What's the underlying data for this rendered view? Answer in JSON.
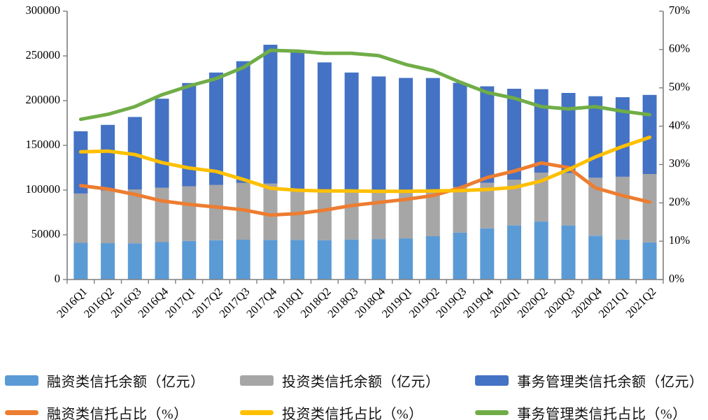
{
  "chart_data": {
    "type": "combo-stacked-bar-line",
    "title": "",
    "grid": false,
    "bars_stacked": true,
    "legend_position": "bottom",
    "categories": [
      "2016Q1",
      "2016Q2",
      "2016Q3",
      "2016Q4",
      "2017Q1",
      "2017Q2",
      "2017Q3",
      "2017Q4",
      "2018Q1",
      "2018Q2",
      "2018Q3",
      "2018Q4",
      "2019Q1",
      "2019Q2",
      "2019Q3",
      "2019Q4",
      "2020Q1",
      "2020Q2",
      "2020Q3",
      "2020Q4",
      "2021Q1",
      "2021Q2"
    ],
    "left_axis": {
      "min": 0,
      "max": 300000,
      "tick_step": 50000,
      "tick_labels": [
        "0",
        "50000",
        "100000",
        "150000",
        "200000",
        "250000",
        "300000"
      ],
      "applies_to": "bars (亿元)"
    },
    "right_axis": {
      "min": 0,
      "max": 70,
      "tick_step": 10,
      "tick_labels": [
        "0%",
        "10%",
        "20%",
        "30%",
        "40%",
        "50%",
        "60%",
        "70%"
      ],
      "applies_to": "lines (%)"
    },
    "bar_series": [
      {
        "name": "融资类信托余额（亿元）",
        "key": "financing-balance",
        "color": "#5B9BD5",
        "values": [
          41000,
          40600,
          40500,
          41800,
          43100,
          43900,
          44500,
          44300,
          44300,
          44000,
          44600,
          45200,
          46000,
          48500,
          52400,
          57200,
          60500,
          64800,
          60500,
          49000,
          44600,
          41500
        ]
      },
      {
        "name": "投资类信托余额（亿元）",
        "key": "investment-balance",
        "color": "#A6A6A6",
        "values": [
          55200,
          58800,
          60300,
          60800,
          61200,
          61800,
          63700,
          63000,
          57200,
          56100,
          53000,
          52400,
          51800,
          52000,
          51000,
          50800,
          51200,
          54700,
          58500,
          64800,
          70300,
          76500
        ]
      },
      {
        "name": "事务管理类信托余额（亿元）",
        "key": "administrative-balance",
        "color": "#4472C4",
        "values": [
          69600,
          73500,
          80900,
          99600,
          115400,
          125700,
          135900,
          155200,
          154600,
          142600,
          133800,
          129400,
          127600,
          124800,
          116500,
          108000,
          101600,
          93300,
          89600,
          91100,
          88900,
          88400
        ]
      }
    ],
    "bar_totals": [
      165800,
      172900,
      181700,
      202200,
      219700,
      231400,
      244100,
      262500,
      256100,
      242700,
      231400,
      227000,
      225400,
      225300,
      219900,
      216000,
      213300,
      212800,
      208600,
      204900,
      203800,
      206400
    ],
    "line_series": [
      {
        "name": "融资类信托占比（%）",
        "key": "financing-ratio",
        "color": "#ED7D31",
        "values": [
          24.5,
          23.6,
          22.2,
          20.5,
          19.6,
          18.9,
          18.2,
          16.8,
          17.2,
          18.1,
          19.3,
          20.1,
          20.9,
          21.9,
          23.9,
          26.6,
          28.3,
          30.4,
          29.2,
          23.9,
          21.9,
          20.2
        ]
      },
      {
        "name": "投资类信托占比（%）",
        "key": "investment-ratio",
        "color": "#FFC000",
        "values": [
          33.3,
          33.5,
          32.6,
          30.5,
          29.1,
          28.2,
          26.1,
          23.8,
          23.3,
          23.1,
          23.1,
          23.0,
          23.0,
          23.1,
          23.2,
          23.5,
          24.0,
          25.7,
          28.7,
          32.0,
          34.7,
          37.1
        ]
      },
      {
        "name": "事务管理类信托占比（%）",
        "key": "administrative-ratio",
        "color": "#70AD47",
        "values": [
          41.8,
          43.1,
          45.1,
          48.2,
          50.5,
          52.4,
          55.3,
          59.8,
          59.6,
          59.0,
          59.0,
          58.4,
          56.1,
          54.5,
          51.5,
          48.8,
          47.3,
          45.1,
          44.5,
          45.1,
          43.9,
          43.0
        ]
      }
    ],
    "axis_color": "#7F7F7F",
    "background": "#FFFFFF"
  },
  "legend": {
    "rows": [
      [
        "融资类信托余额（亿元）",
        "投资类信托余额（亿元）",
        "事务管理类信托余额（亿元）"
      ],
      [
        "融资类信托占比（%）",
        "投资类信托占比（%）",
        "事务管理类信托占比（%）"
      ]
    ]
  }
}
